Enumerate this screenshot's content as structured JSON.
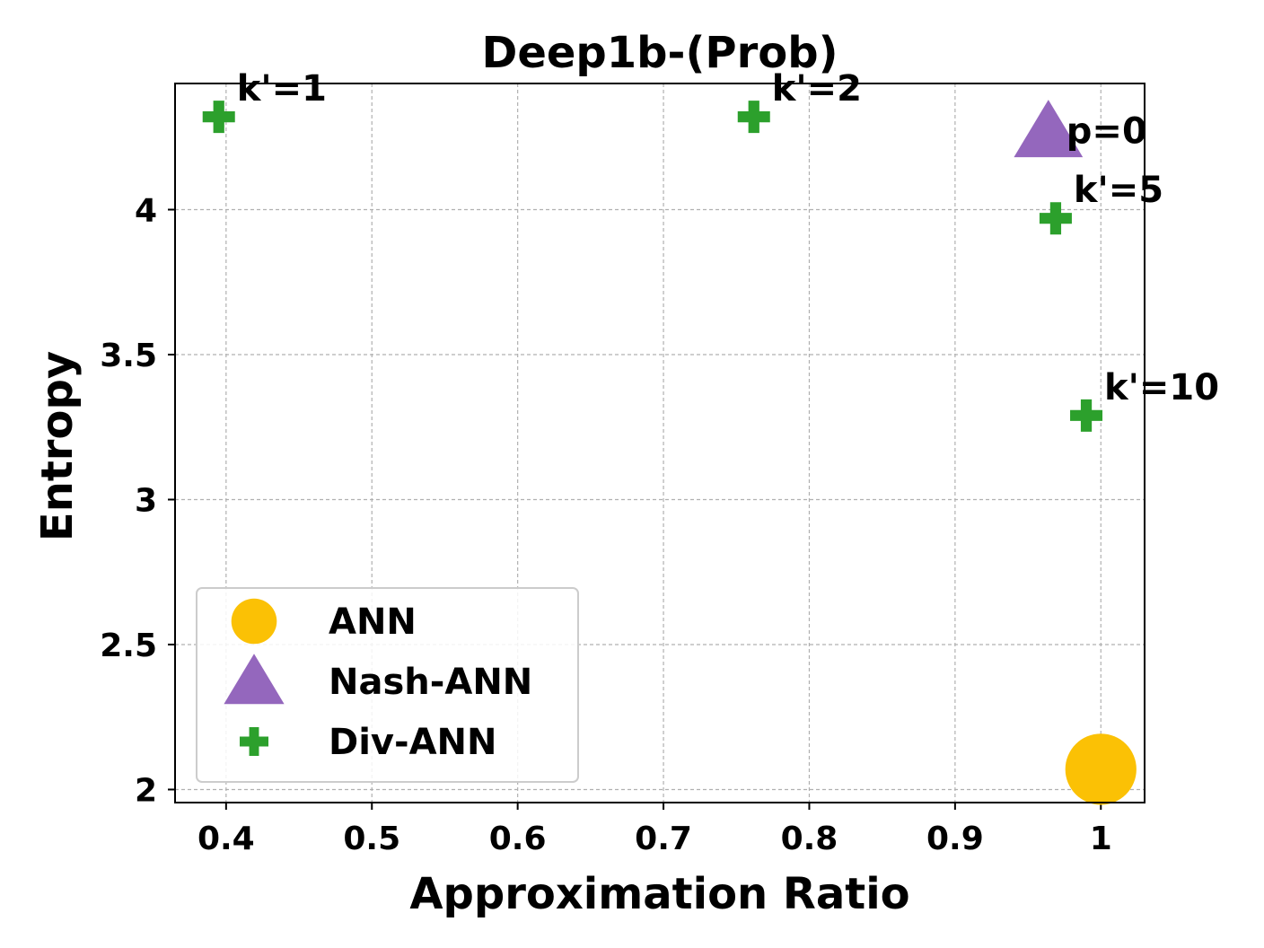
{
  "chart_data": {
    "type": "scatter",
    "title": "Deep1b-(Prob)",
    "xlabel": "Approximation Ratio",
    "ylabel": "Entropy",
    "xlim": [
      0.365,
      1.03
    ],
    "ylim": [
      1.955,
      4.435
    ],
    "xticks": [
      0.4,
      0.5,
      0.6,
      0.7,
      0.8,
      0.9,
      1
    ],
    "xtick_labels": [
      "0.4",
      "0.5",
      "0.6",
      "0.7",
      "0.8",
      "0.9",
      "1"
    ],
    "yticks": [
      2,
      2.5,
      3,
      3.5,
      4
    ],
    "ytick_labels": [
      "2",
      "2.5",
      "3",
      "3.5",
      "4"
    ],
    "grid": true,
    "legend_position": "lower-left",
    "series": [
      {
        "name": "ANN",
        "marker": "circle",
        "color": "#fbc105",
        "points": [
          {
            "x": 1.0,
            "y": 2.07,
            "label": ""
          }
        ]
      },
      {
        "name": "Nash-ANN",
        "marker": "triangle",
        "color": "#9467bd",
        "points": [
          {
            "x": 0.964,
            "y": 4.27,
            "label": "p=0"
          }
        ]
      },
      {
        "name": "Div-ANN",
        "marker": "plus",
        "color": "#2ca02c",
        "points": [
          {
            "x": 0.395,
            "y": 4.32,
            "label": "k'=1"
          },
          {
            "x": 0.762,
            "y": 4.32,
            "label": "k'=2"
          },
          {
            "x": 0.969,
            "y": 3.97,
            "label": "k'=5"
          },
          {
            "x": 0.99,
            "y": 3.29,
            "label": "k'=10"
          }
        ]
      }
    ]
  }
}
